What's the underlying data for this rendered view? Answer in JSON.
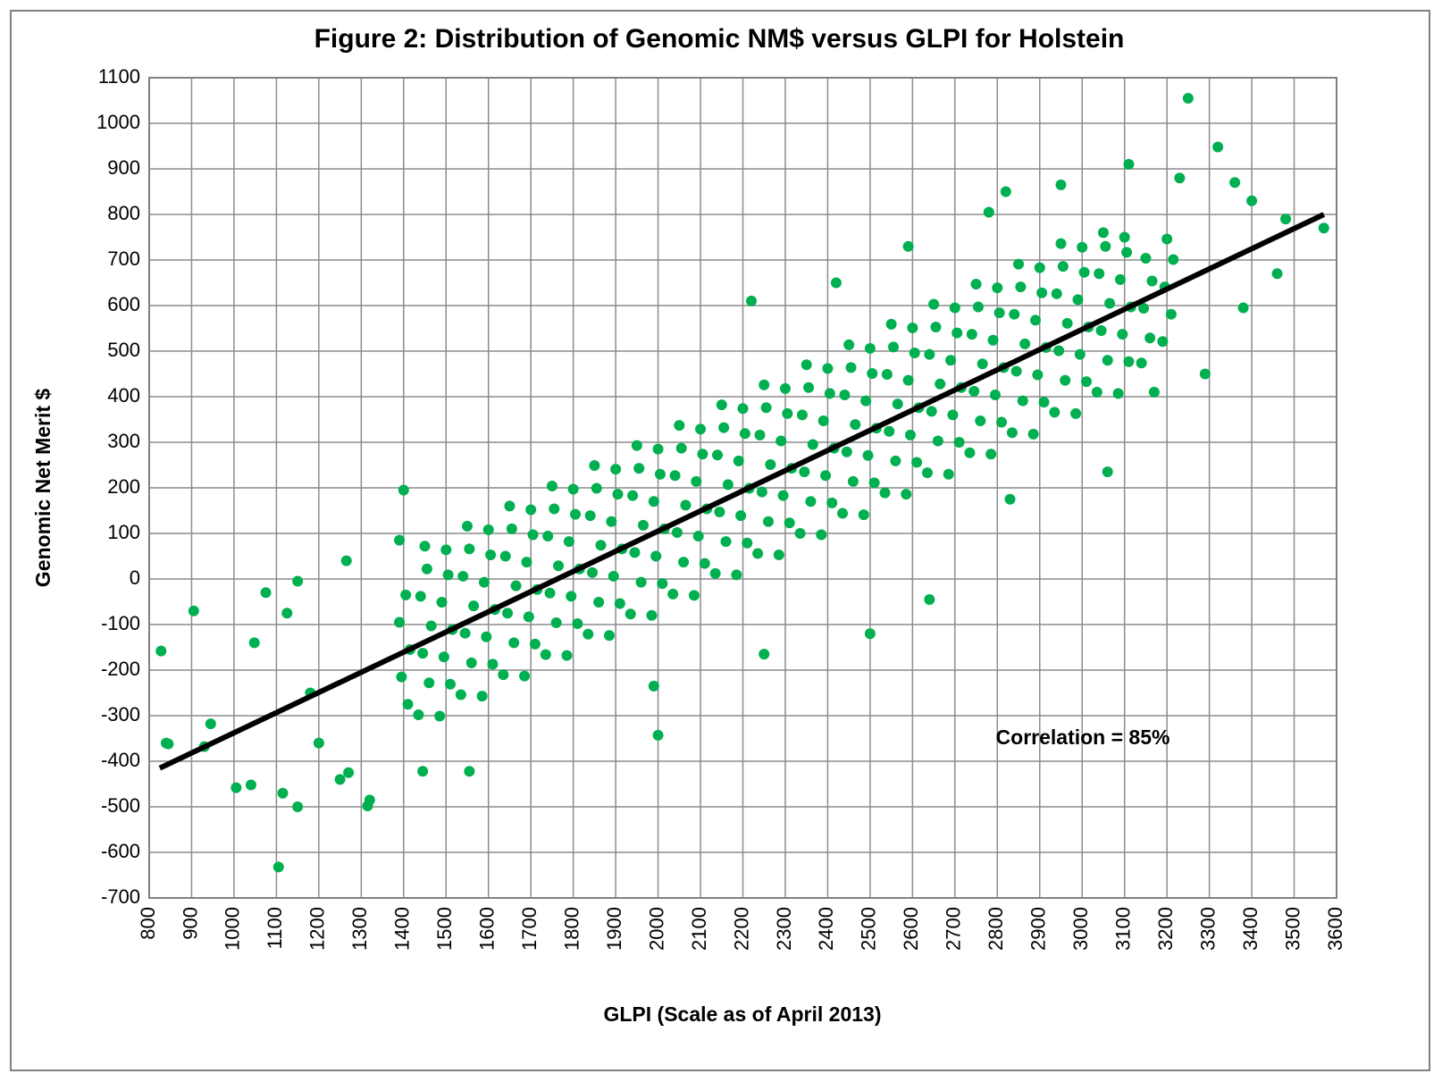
{
  "chart_data": {
    "type": "scatter",
    "title": "Figure 2: Distribution of Genomic NM$ versus GLPI for Holstein",
    "x_label": "GLPI (Scale as of April 2013)",
    "y_label": "Genomic Net Merit $",
    "annotation": "Correlation = 85%",
    "xlim": [
      800,
      3600
    ],
    "ylim": [
      -700,
      1100
    ],
    "xticks": [
      800,
      900,
      1000,
      1100,
      1200,
      1300,
      1400,
      1500,
      1600,
      1700,
      1800,
      1900,
      2000,
      2100,
      2200,
      2300,
      2400,
      2500,
      2600,
      2700,
      2800,
      2900,
      3000,
      3100,
      3200,
      3300,
      3400,
      3500,
      3600
    ],
    "yticks": [
      -700,
      -600,
      -500,
      -400,
      -300,
      -200,
      -100,
      0,
      100,
      200,
      300,
      400,
      500,
      600,
      700,
      800,
      900,
      1000,
      1100
    ],
    "grid": true,
    "series": [
      {
        "color": "#00b050",
        "mode": "points",
        "x": [
          1410,
          1395,
          1415,
          1390,
          1405,
          1435,
          1460,
          1445,
          1465,
          1440,
          1455,
          1450,
          1485,
          1510,
          1495,
          1515,
          1490,
          1505,
          1500,
          1535,
          1560,
          1545,
          1565,
          1540,
          1555,
          1550,
          1585,
          1610,
          1595,
          1615,
          1590,
          1605,
          1600,
          1635,
          1660,
          1645,
          1665,
          1640,
          1655,
          1650,
          1685,
          1710,
          1695,
          1715,
          1690,
          1705,
          1700,
          1735,
          1760,
          1745,
          1765,
          1740,
          1755,
          1750,
          1785,
          1810,
          1795,
          1815,
          1790,
          1805,
          1800,
          1835,
          1860,
          1845,
          1865,
          1840,
          1855,
          1850,
          1885,
          1910,
          1895,
          1915,
          1890,
          1905,
          1900,
          1935,
          1960,
          1945,
          1965,
          1940,
          1955,
          1950,
          1985,
          2010,
          1995,
          2015,
          1990,
          2005,
          2000,
          2035,
          2060,
          2045,
          2065,
          2040,
          2055,
          2050,
          2085,
          2110,
          2095,
          2115,
          2090,
          2105,
          2100,
          2135,
          2160,
          2145,
          2165,
          2140,
          2155,
          2150,
          2185,
          2210,
          2195,
          2215,
          2190,
          2205,
          2200,
          2235,
          2260,
          2245,
          2265,
          2240,
          2255,
          2250,
          2285,
          2310,
          2295,
          2315,
          2290,
          2305,
          2300,
          2335,
          2360,
          2345,
          2365,
          2340,
          2355,
          2350,
          2385,
          2410,
          2395,
          2415,
          2390,
          2405,
          2400,
          2435,
          2460,
          2445,
          2465,
          2440,
          2455,
          2450,
          2485,
          2510,
          2495,
          2515,
          2490,
          2505,
          2500,
          2535,
          2560,
          2545,
          2565,
          2540,
          2555,
          2550,
          2585,
          2610,
          2595,
          2615,
          2590,
          2605,
          2600,
          2635,
          2660,
          2645,
          2665,
          2640,
          2655,
          2650,
          2685,
          2710,
          2695,
          2715,
          2690,
          2705,
          2700,
          2735,
          2760,
          2745,
          2765,
          2740,
          2755,
          2750,
          2785,
          2810,
          2795,
          2815,
          2790,
          2805,
          2800,
          2835,
          2860,
          2845,
          2865,
          2840,
          2855,
          2850,
          2885,
          2910,
          2895,
          2915,
          2890,
          2905,
          2900,
          2935,
          2960,
          2945,
          2965,
          2940,
          2955,
          2950,
          2985,
          3010,
          2995,
          3015,
          2990,
          3005,
          3000,
          3035,
          3060,
          3045,
          3065,
          3040,
          3055,
          3050,
          3085,
          3110,
          3095,
          3115,
          3090,
          3105,
          3100,
          3140,
          3160,
          3145,
          3165,
          3150,
          3190,
          3210,
          3195,
          3215,
          3200,
          828,
          840,
          845,
          905,
          930,
          945,
          1005,
          1040,
          1048,
          1075,
          1105,
          1115,
          1150,
          1150,
          1125,
          1315,
          1400,
          1555,
          1445,
          2000,
          2250,
          2640,
          3060,
          3250,
          3320,
          3110,
          3570,
          3480,
          3460,
          2950,
          2820,
          2780,
          2590,
          3290,
          3380,
          1250,
          1270,
          1320,
          1200,
          1180,
          1265,
          1390,
          1990,
          2500,
          2220,
          2420,
          2830,
          3170,
          3360,
          3400,
          3230
        ],
        "values": [
          -275,
          -215,
          -155,
          -95,
          -35,
          -298,
          -228,
          -163,
          -103,
          -38,
          22,
          72,
          -301,
          -231,
          -171,
          -111,
          -51,
          9,
          64,
          -254,
          -184,
          -119,
          -59,
          6,
          66,
          116,
          -257,
          -187,
          -127,
          -67,
          -7,
          53,
          108,
          -210,
          -140,
          -75,
          -15,
          50,
          110,
          160,
          -213,
          -143,
          -83,
          -23,
          37,
          97,
          152,
          -166,
          -96,
          -31,
          29,
          94,
          154,
          204,
          -168,
          -98,
          -38,
          22,
          82,
          142,
          197,
          -121,
          -51,
          14,
          74,
          139,
          199,
          249,
          -124,
          -54,
          6,
          66,
          126,
          186,
          241,
          -77,
          -7,
          58,
          118,
          183,
          243,
          293,
          -80,
          -10,
          50,
          110,
          170,
          230,
          285,
          -33,
          37,
          102,
          162,
          227,
          287,
          337,
          -36,
          34,
          94,
          154,
          214,
          274,
          329,
          12,
          82,
          147,
          207,
          272,
          332,
          382,
          9,
          79,
          139,
          199,
          259,
          319,
          374,
          56,
          126,
          191,
          251,
          316,
          376,
          426,
          53,
          123,
          183,
          243,
          303,
          363,
          418,
          100,
          170,
          235,
          295,
          360,
          420,
          470,
          97,
          167,
          227,
          287,
          347,
          407,
          462,
          144,
          214,
          279,
          339,
          404,
          464,
          514,
          141,
          211,
          271,
          331,
          391,
          451,
          506,
          189,
          259,
          324,
          384,
          449,
          509,
          559,
          186,
          256,
          316,
          376,
          436,
          496,
          551,
          233,
          303,
          368,
          428,
          493,
          553,
          603,
          230,
          300,
          360,
          420,
          480,
          540,
          595,
          277,
          347,
          412,
          472,
          537,
          597,
          647,
          274,
          344,
          404,
          464,
          524,
          584,
          639,
          321,
          391,
          456,
          516,
          581,
          641,
          691,
          318,
          388,
          448,
          508,
          568,
          628,
          683,
          366,
          436,
          501,
          561,
          626,
          686,
          736,
          363,
          433,
          493,
          553,
          613,
          673,
          728,
          410,
          480,
          545,
          605,
          670,
          730,
          760,
          407,
          477,
          537,
          597,
          657,
          717,
          750,
          474,
          529,
          594,
          654,
          704,
          521,
          581,
          641,
          701,
          746,
          -158,
          -360,
          -362,
          -70,
          -368,
          -318,
          -458,
          -452,
          -140,
          -30,
          -632,
          -470,
          -500,
          -5,
          -75,
          -498,
          195,
          -422,
          -422,
          -343,
          -165,
          -45,
          235,
          1055,
          948,
          910,
          770,
          790,
          670,
          865,
          850,
          805,
          730,
          450,
          595,
          -440,
          -425,
          -485,
          -360,
          -250,
          40,
          85,
          -235,
          -120,
          610,
          650,
          175,
          410,
          870,
          830,
          880
        ]
      },
      {
        "color": "#000000",
        "mode": "line",
        "x": [
          825,
          3570
        ],
        "values": [
          -415,
          800
        ]
      }
    ]
  }
}
